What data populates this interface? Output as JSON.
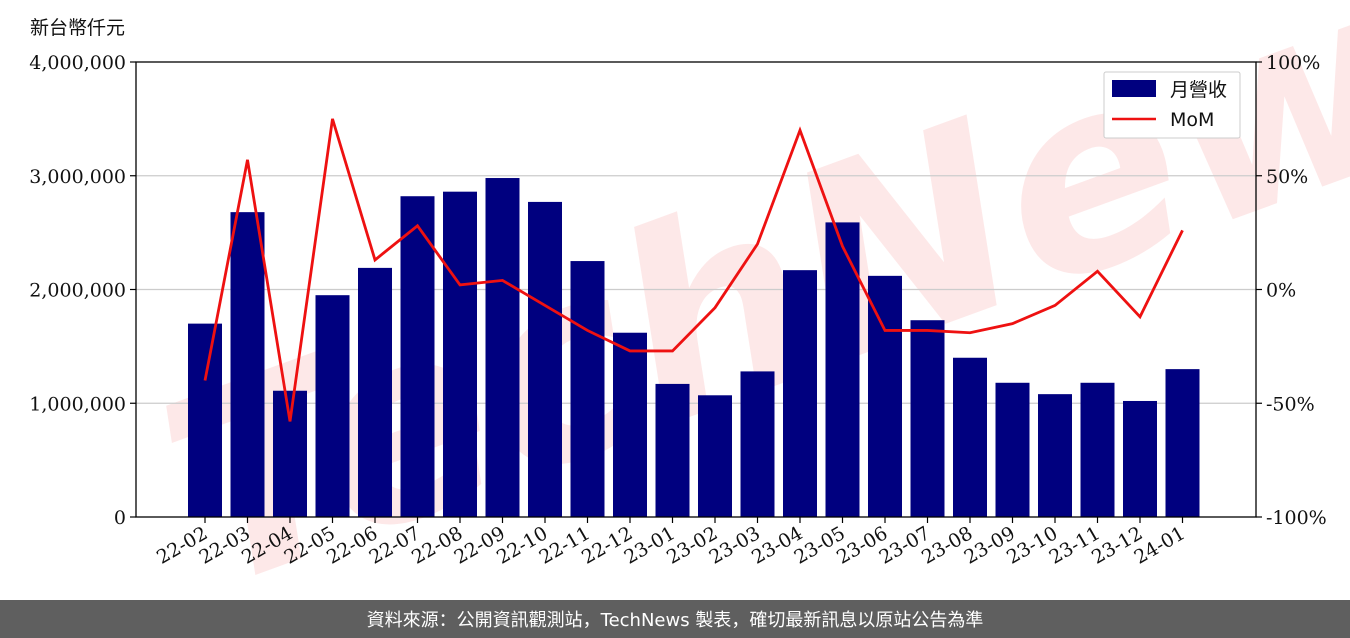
{
  "chart_data": {
    "type": "bar",
    "ylabel": "新台幣仟元",
    "categories": [
      "22-02",
      "22-03",
      "22-04",
      "22-05",
      "22-06",
      "22-07",
      "22-08",
      "22-09",
      "22-10",
      "22-11",
      "22-12",
      "23-01",
      "23-02",
      "23-03",
      "23-04",
      "23-05",
      "23-06",
      "23-07",
      "23-08",
      "23-09",
      "23-10",
      "23-11",
      "23-12",
      "24-01"
    ],
    "ylim": [
      0,
      4000000
    ],
    "y_ticks": [
      "0",
      "1,000,000",
      "2,000,000",
      "3,000,000",
      "4,000,000"
    ],
    "y2lim": [
      -100,
      100
    ],
    "y2_ticks": [
      "-100%",
      "-50%",
      "0%",
      "50%",
      "100%"
    ],
    "series": [
      {
        "name": "月營收",
        "type": "bar",
        "color": "#00007f",
        "values": [
          1700000,
          2680000,
          1110000,
          1950000,
          2190000,
          2820000,
          2860000,
          2980000,
          2770000,
          2250000,
          1620000,
          1170000,
          1070000,
          1280000,
          2170000,
          2590000,
          2120000,
          1730000,
          1400000,
          1180000,
          1080000,
          1180000,
          1020000,
          1300000
        ]
      },
      {
        "name": "MoM",
        "type": "line",
        "axis": "right",
        "color": "#ee1111",
        "values": [
          -40,
          57,
          -58,
          75,
          13,
          28,
          2,
          4,
          -7,
          -18,
          -27,
          -27,
          -8,
          20,
          70,
          19,
          -18,
          -18,
          -19,
          -15,
          -7,
          8,
          -12,
          26
        ]
      }
    ],
    "grid": "horizontal",
    "legend": "top-right",
    "watermark": "TechNews"
  },
  "footer": {
    "text": "資料來源：公開資訊觀測站，TechNews 製表，確切最新訊息以原站公告為準"
  }
}
